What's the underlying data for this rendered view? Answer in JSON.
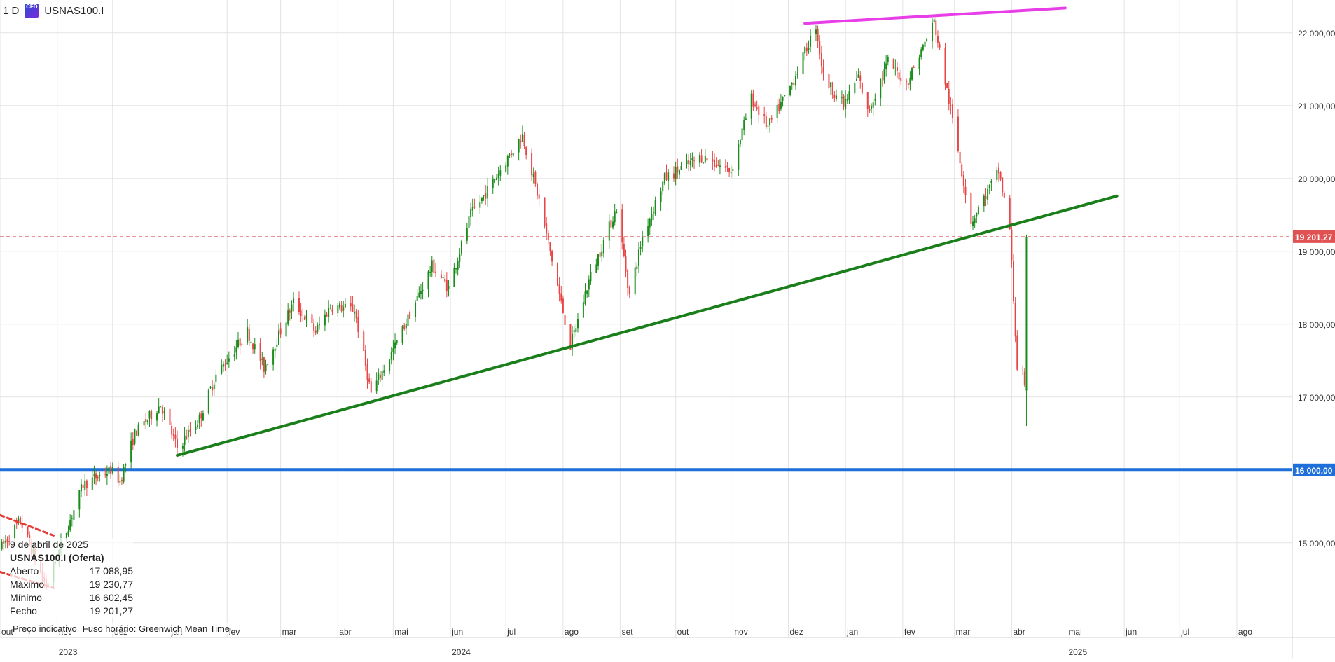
{
  "header": {
    "timeframe": "1 D",
    "cfd_badge": "CFD",
    "symbol": "USNAS100.I"
  },
  "info": {
    "date": "9 de abril de 2025",
    "symbol_line": "USNAS100.I (Oferta)",
    "rows": [
      {
        "label": "Aberto",
        "value": "17 088,95"
      },
      {
        "label": "Máximo",
        "value": "19 230,77"
      },
      {
        "label": "Mínimo",
        "value": "16 602,45"
      },
      {
        "label": "Fecho",
        "value": "19 201,27"
      }
    ]
  },
  "footer": {
    "note1": "Preço indicativo",
    "note2": "Fuso horário: Greenwich Mean Time"
  },
  "chart_data": {
    "type": "candlestick",
    "symbol": "USNAS100.I",
    "timeframe": "1 D",
    "x_range": [
      "2023-10-01",
      "2025-08-31"
    ],
    "ylim": [
      13700,
      22450
    ],
    "y_ticks": [
      15000,
      16000,
      17000,
      18000,
      19000,
      20000,
      21000,
      22000
    ],
    "y_tick_labels": [
      "15 000,00",
      "16 000,00",
      "17 000,00",
      "18 000,00",
      "19 000,00",
      "20 000,00",
      "21 000,00",
      "22 000,00"
    ],
    "x_month_labels": [
      {
        "date": "2023-10-01",
        "label": "out"
      },
      {
        "date": "2023-11-01",
        "label": "nov"
      },
      {
        "date": "2023-12-01",
        "label": "dez"
      },
      {
        "date": "2024-01-01",
        "label": "jan"
      },
      {
        "date": "2024-02-01",
        "label": "fev"
      },
      {
        "date": "2024-03-01",
        "label": "mar"
      },
      {
        "date": "2024-04-01",
        "label": "abr"
      },
      {
        "date": "2024-05-01",
        "label": "mai"
      },
      {
        "date": "2024-06-01",
        "label": "jun"
      },
      {
        "date": "2024-07-01",
        "label": "jul"
      },
      {
        "date": "2024-08-01",
        "label": "ago"
      },
      {
        "date": "2024-09-01",
        "label": "set"
      },
      {
        "date": "2024-10-01",
        "label": "out"
      },
      {
        "date": "2024-11-01",
        "label": "nov"
      },
      {
        "date": "2024-12-01",
        "label": "dez"
      },
      {
        "date": "2025-01-01",
        "label": "jan"
      },
      {
        "date": "2025-02-01",
        "label": "fev"
      },
      {
        "date": "2025-03-01",
        "label": "mar"
      },
      {
        "date": "2025-04-01",
        "label": "abr"
      },
      {
        "date": "2025-05-01",
        "label": "mai"
      },
      {
        "date": "2025-06-01",
        "label": "jun"
      },
      {
        "date": "2025-07-01",
        "label": "jul"
      },
      {
        "date": "2025-08-01",
        "label": "ago"
      }
    ],
    "x_year_labels": [
      {
        "date": "2023-11-01",
        "label": "2023"
      },
      {
        "date": "2024-06-01",
        "label": "2024"
      },
      {
        "date": "2025-05-01",
        "label": "2025"
      }
    ],
    "price_path": [
      [
        "2023-10-02",
        14950
      ],
      [
        "2023-10-12",
        15300
      ],
      [
        "2023-10-26",
        14400
      ],
      [
        "2023-11-15",
        15800
      ],
      [
        "2023-11-30",
        16000
      ],
      [
        "2023-12-05",
        15850
      ],
      [
        "2023-12-13",
        16500
      ],
      [
        "2023-12-27",
        16900
      ],
      [
        "2024-01-05",
        16300
      ],
      [
        "2024-01-17",
        16700
      ],
      [
        "2024-01-26",
        17300
      ],
      [
        "2024-02-12",
        17900
      ],
      [
        "2024-02-21",
        17400
      ],
      [
        "2024-03-08",
        18300
      ],
      [
        "2024-03-20",
        17900
      ],
      [
        "2024-03-28",
        18250
      ],
      [
        "2024-04-10",
        18200
      ],
      [
        "2024-04-19",
        17050
      ],
      [
        "2024-05-02",
        17700
      ],
      [
        "2024-05-22",
        18800
      ],
      [
        "2024-05-31",
        18500
      ],
      [
        "2024-06-12",
        19500
      ],
      [
        "2024-06-20",
        19800
      ],
      [
        "2024-07-10",
        20600
      ],
      [
        "2024-07-19",
        19700
      ],
      [
        "2024-08-05",
        17700
      ],
      [
        "2024-08-15",
        18600
      ],
      [
        "2024-08-30",
        19600
      ],
      [
        "2024-09-06",
        18400
      ],
      [
        "2024-09-13",
        19200
      ],
      [
        "2024-09-25",
        20000
      ],
      [
        "2024-10-15",
        20300
      ],
      [
        "2024-10-31",
        20100
      ],
      [
        "2024-11-11",
        21100
      ],
      [
        "2024-11-20",
        20700
      ],
      [
        "2024-12-03",
        21300
      ],
      [
        "2024-12-16",
        22100
      ],
      [
        "2024-12-20",
        21400
      ],
      [
        "2024-12-31",
        21000
      ],
      [
        "2025-01-08",
        21400
      ],
      [
        "2025-01-13",
        20900
      ],
      [
        "2025-01-24",
        21600
      ],
      [
        "2025-02-03",
        21300
      ],
      [
        "2025-02-18",
        22150
      ],
      [
        "2025-02-28",
        20800
      ],
      [
        "2025-03-10",
        19400
      ],
      [
        "2025-03-25",
        20100
      ],
      [
        "2025-03-31",
        19300
      ],
      [
        "2025-04-04",
        17400
      ],
      [
        "2025-04-07",
        17300
      ],
      [
        "2025-04-08",
        17090
      ]
    ],
    "last_candle": {
      "date": "2025-04-09",
      "open": 17088.95,
      "high": 19230.77,
      "low": 16602.45,
      "close": 19201.27
    },
    "trendlines": [
      {
        "color": "#1a7f1a",
        "from": [
          "2024-01-05",
          16200
        ],
        "to": [
          "2025-05-28",
          19760
        ]
      },
      {
        "color": "#e83ee8",
        "from": [
          "2024-12-10",
          22130
        ],
        "to": [
          "2025-04-30",
          22340
        ]
      },
      {
        "color": "#e53935",
        "dashed": true,
        "from": [
          "2023-10-01",
          15380
        ],
        "to": [
          "2023-10-30",
          15100
        ]
      },
      {
        "color": "#e53935",
        "dashed": true,
        "from": [
          "2023-10-01",
          14600
        ],
        "to": [
          "2023-10-30",
          14380
        ]
      }
    ],
    "horizontal_levels": [
      {
        "value": 16000,
        "label": "16 000,00",
        "color": "#1e6fd9"
      },
      {
        "value": 19201.27,
        "label": "19 201,27",
        "color": "#e05252",
        "dashed": true
      }
    ],
    "colors": {
      "up": "#1a8c1a",
      "down": "#e84545"
    }
  }
}
